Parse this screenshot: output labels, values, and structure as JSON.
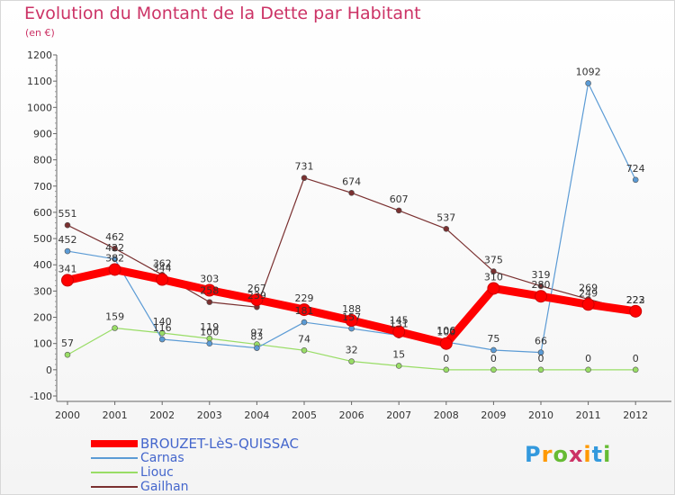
{
  "title": "Evolution du Montant de la Dette par Habitant",
  "subtitle": "(en €)",
  "logo_text": "Proxiti",
  "chart_data": {
    "type": "line",
    "title": "Evolution du Montant de la Dette par Habitant",
    "subtitle": "(en €)",
    "x": [
      "2000",
      "2001",
      "2002",
      "2003",
      "2004",
      "2005",
      "2006",
      "2007",
      "2008",
      "2009",
      "2010",
      "2011",
      "2012"
    ],
    "ylim": [
      -100,
      1200
    ],
    "yticks": [
      -100,
      0,
      100,
      200,
      300,
      400,
      500,
      600,
      700,
      800,
      900,
      1000,
      1100,
      1200
    ],
    "grid": false,
    "legend_position": "bottom-left",
    "series": [
      {
        "name": "BROUZET-LèS-QUISSAC",
        "color": "#ff0000",
        "values": [
          341,
          382,
          344,
          303,
          267,
          229,
          188,
          145,
          100,
          310,
          280,
          249,
          223
        ]
      },
      {
        "name": "Carnas",
        "color": "#5b9bd5",
        "values": [
          452,
          422,
          116,
          100,
          83,
          181,
          157,
          131,
          106,
          75,
          66,
          1092,
          724
        ]
      },
      {
        "name": "Liouc",
        "color": "#99dd66",
        "values": [
          57,
          159,
          140,
          119,
          97,
          74,
          32,
          15,
          0,
          0,
          0,
          0,
          0
        ]
      },
      {
        "name": "Gailhan",
        "color": "#7a3030",
        "values": [
          551,
          462,
          362,
          258,
          239,
          731,
          674,
          607,
          537,
          375,
          319,
          269,
          222
        ]
      }
    ]
  }
}
